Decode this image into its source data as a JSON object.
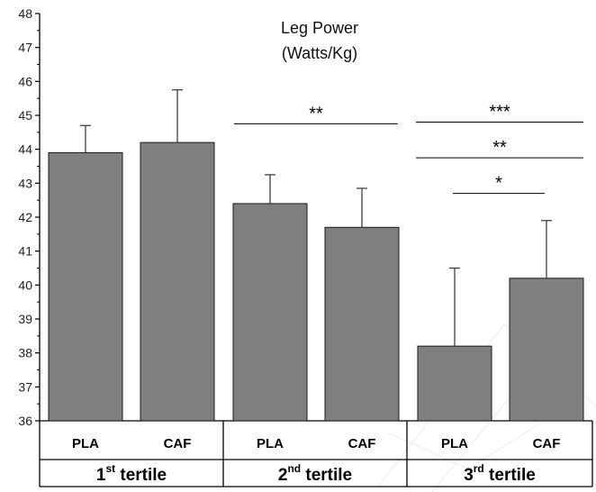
{
  "chart_data": {
    "type": "bar",
    "title": "Leg Power",
    "subtitle": "(Watts/Kg)",
    "ylim": [
      36,
      48
    ],
    "yticks": [
      36,
      37,
      38,
      39,
      40,
      41,
      42,
      43,
      44,
      45,
      46,
      47,
      48
    ],
    "bar_color": "#7f7f7f",
    "categories": [
      "PLA",
      "CAF",
      "PLA",
      "CAF",
      "PLA",
      "CAF"
    ],
    "values": [
      43.9,
      44.2,
      42.4,
      41.7,
      38.2,
      40.2
    ],
    "error_plus": [
      0.8,
      1.55,
      0.85,
      1.15,
      2.3,
      1.7
    ],
    "groups": [
      {
        "num": "1",
        "sup": "st",
        "label": "tertile"
      },
      {
        "num": "2",
        "sup": "nd",
        "label": "tertile"
      },
      {
        "num": "3",
        "sup": "rd",
        "label": "tertile"
      }
    ],
    "significance": [
      {
        "label": "**",
        "from_bar": 2,
        "to_bar": 3,
        "y": 44.75
      },
      {
        "label": "***",
        "from_bar": 4,
        "to_bar": 5,
        "y": 44.8
      },
      {
        "label": "**",
        "from_bar": 4,
        "to_bar": 5,
        "y": 43.75
      },
      {
        "label": "*",
        "from_bar": 4,
        "to_bar": 5,
        "y": 42.7
      }
    ]
  }
}
